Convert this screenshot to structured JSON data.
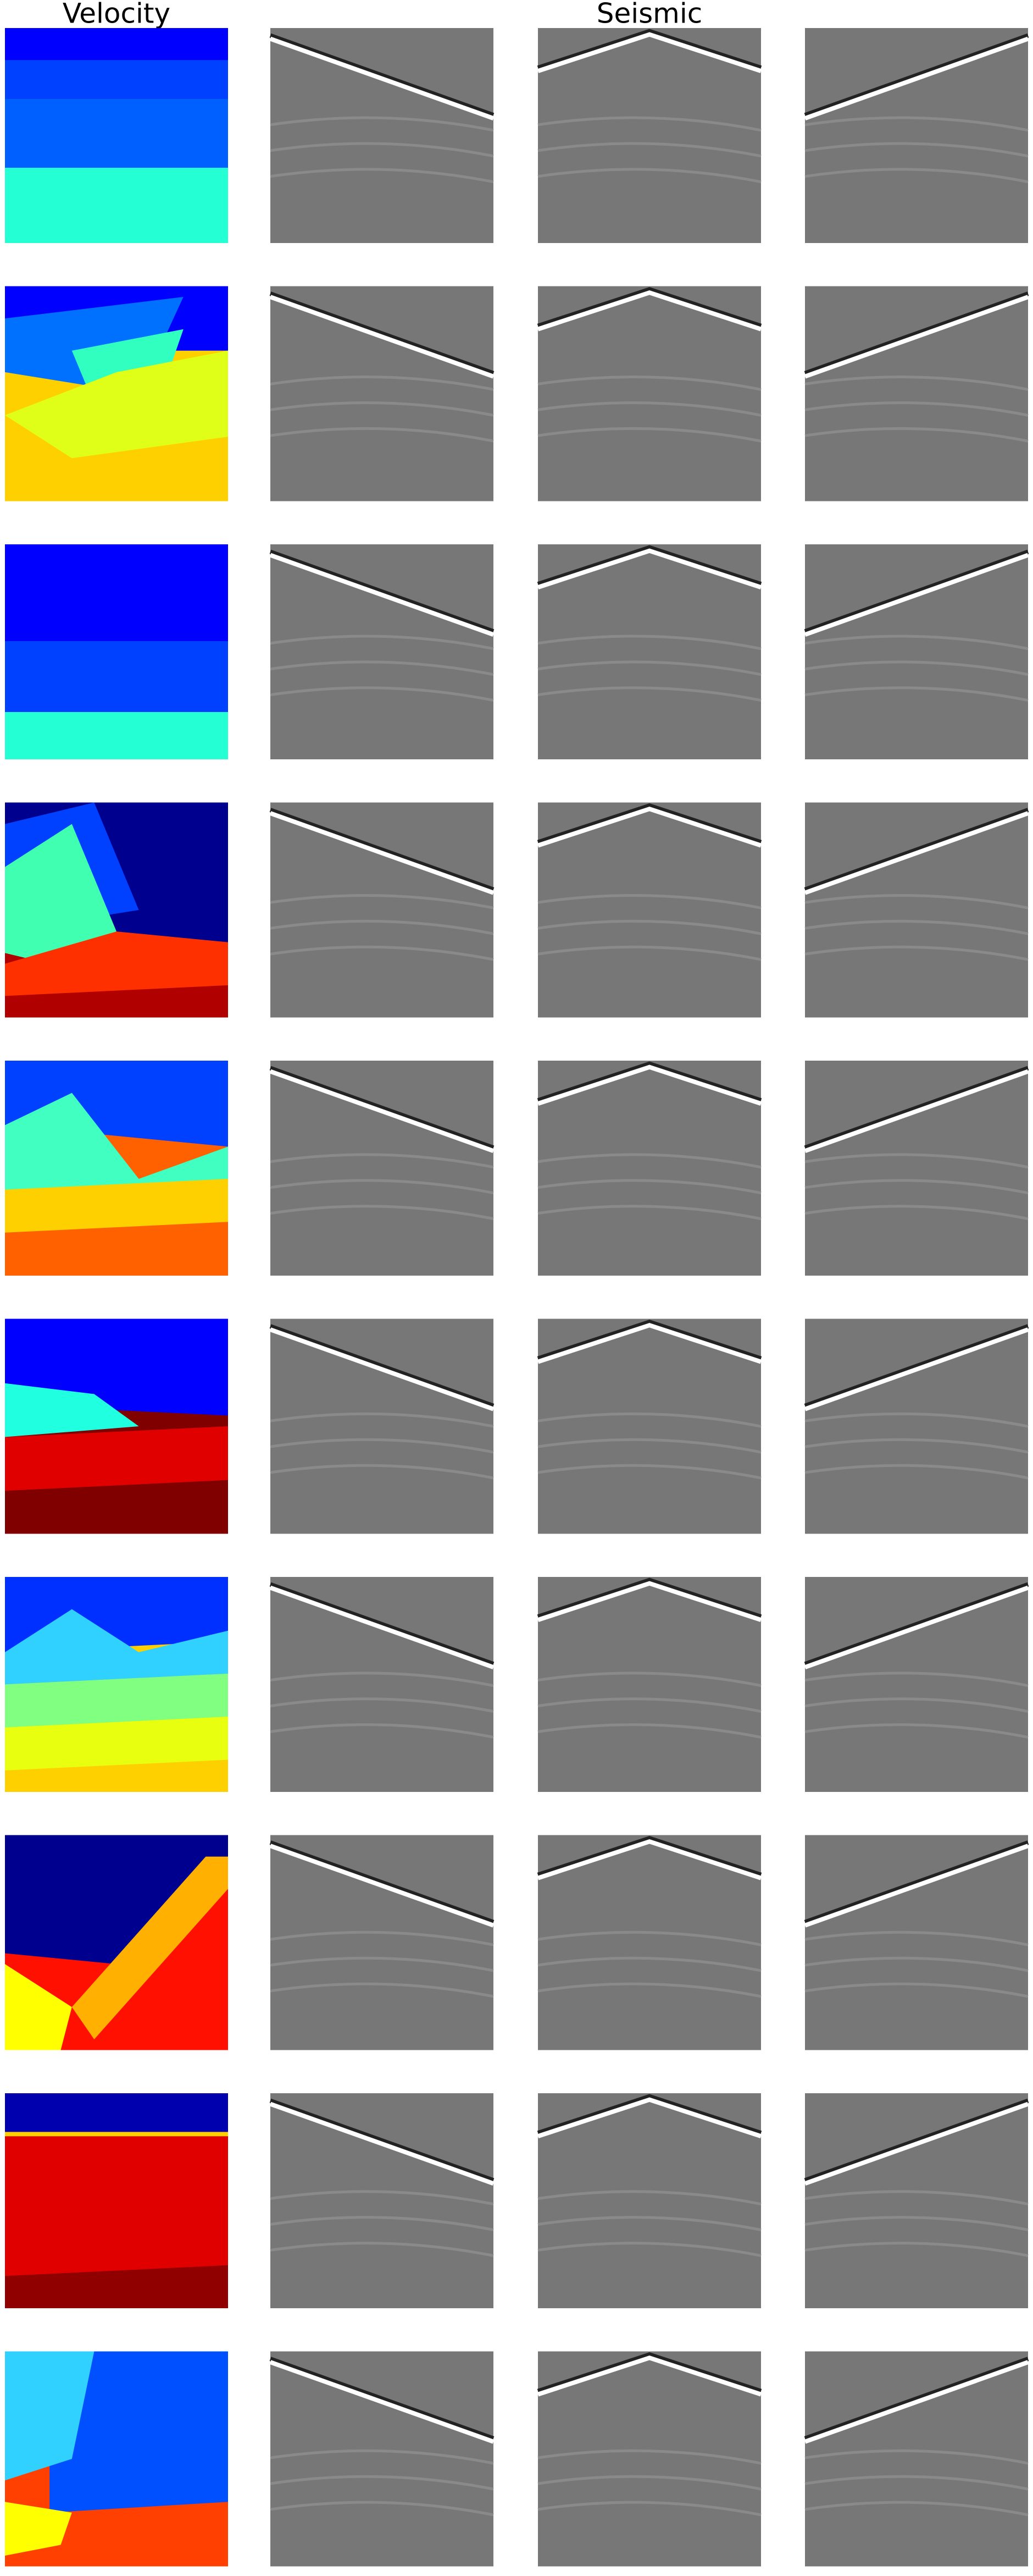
{
  "header": {
    "velocity_title": "Velocity",
    "seismic_title": "Seismic"
  }
}
